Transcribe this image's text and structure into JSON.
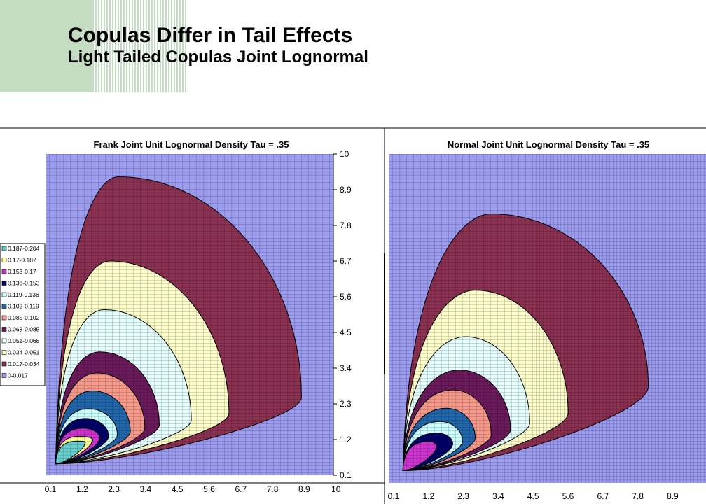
{
  "slide": {
    "title": "Copulas Differ in Tail Effects",
    "subtitle": "Light Tailed Copulas Joint Lognormal"
  },
  "colors": {
    "background_grid": "#9b9bf0",
    "grid_line": "#000000",
    "deco_green": "#c4dcc2"
  },
  "chart_data": [
    {
      "type": "heatmap",
      "subtype": "contour",
      "title": "Frank Joint Unit Lognormal Density Tau = .35",
      "x_ticks": [
        "0.1",
        "1.2",
        "2.3",
        "3.4",
        "4.5",
        "5.6",
        "6.7",
        "7.8",
        "8.9",
        "10"
      ],
      "y_ticks": [
        "10",
        "8.9",
        "7.8",
        "6.7",
        "5.6",
        "4.5",
        "3.4",
        "2.3",
        "1.2",
        "0.1"
      ],
      "xlim": [
        0.1,
        10
      ],
      "ylim": [
        0.1,
        10
      ],
      "mode": [
        1.15,
        1.1
      ],
      "grid": true,
      "legend_position": "left",
      "legend": [
        {
          "label": "0.187-0.204",
          "color": "#66cccc"
        },
        {
          "label": "0.17-0.187",
          "color": "#ffff99"
        },
        {
          "label": "0.153-0.17",
          "color": "#cc33cc"
        },
        {
          "label": "0.136-0.153",
          "color": "#000066"
        },
        {
          "label": "0.119-0.136",
          "color": "#ccffff"
        },
        {
          "label": "0.102-0.119",
          "color": "#2266aa"
        },
        {
          "label": "0.085-0.102",
          "color": "#f59a8a"
        },
        {
          "label": "0.068-0.085",
          "color": "#6a1a5a"
        },
        {
          "label": "0.051-0.068",
          "color": "#e6ffff"
        },
        {
          "label": "0.034-0.051",
          "color": "#ffffcc"
        },
        {
          "label": "0.017-0.034",
          "color": "#8a3050"
        },
        {
          "label": "0-0.017",
          "color": "#9b9bf0"
        }
      ],
      "contours": [
        {
          "level": "0.017-0.034",
          "color": "#8a3050",
          "peak": [
            2.6,
            9.3
          ],
          "right": [
            8.9,
            2.5
          ]
        },
        {
          "level": "0.034-0.051",
          "color": "#ffffcc",
          "peak": [
            2.3,
            6.7
          ],
          "right": [
            6.4,
            2.0
          ]
        },
        {
          "level": "0.051-0.068",
          "color": "#e6ffff",
          "peak": [
            2.1,
            5.2
          ],
          "right": [
            5.1,
            1.8
          ]
        },
        {
          "level": "0.068-0.085",
          "color": "#6a1a5a",
          "peak": [
            1.95,
            3.9
          ],
          "right": [
            4.0,
            1.65
          ]
        },
        {
          "level": "0.085-0.102",
          "color": "#f59a8a",
          "peak": [
            1.85,
            3.25
          ],
          "right": [
            3.5,
            1.55
          ]
        },
        {
          "level": "0.102-0.119",
          "color": "#2266aa",
          "peak": [
            1.7,
            2.7
          ],
          "right": [
            3.0,
            1.45
          ]
        },
        {
          "level": "0.119-0.136",
          "color": "#ccffff",
          "peak": [
            1.55,
            2.15
          ],
          "right": [
            2.55,
            1.35
          ]
        },
        {
          "level": "0.136-0.153",
          "color": "#000066",
          "peak": [
            1.45,
            1.85
          ],
          "right": [
            2.25,
            1.3
          ]
        },
        {
          "level": "0.153-0.17",
          "color": "#cc33cc",
          "peak": [
            1.35,
            1.55
          ],
          "right": [
            1.95,
            1.25
          ]
        },
        {
          "level": "0.17-0.187",
          "color": "#ffff99",
          "peak": [
            1.25,
            1.3
          ],
          "right": [
            1.7,
            1.2
          ]
        },
        {
          "level": "0.187-0.204",
          "color": "#66cccc",
          "peak": [
            1.2,
            1.15
          ],
          "right": [
            1.45,
            1.12
          ]
        }
      ]
    },
    {
      "type": "heatmap",
      "subtype": "contour",
      "title": "Normal Joint Unit Lognormal Density Tau = .35",
      "x_ticks": [
        "0.1",
        "1.2",
        "2.3",
        "3.4",
        "4.5",
        "5.6",
        "6.7",
        "7.8",
        "8.9"
      ],
      "xlim": [
        0.1,
        10
      ],
      "ylim": [
        0.1,
        10
      ],
      "mode": [
        1.2,
        1.1
      ],
      "grid": true,
      "contours": [
        {
          "level": "0.017-0.034",
          "color": "#8a3050",
          "peak": [
            3.3,
            8.2
          ],
          "right": [
            8.2,
            3.0
          ]
        },
        {
          "level": "0.034-0.051",
          "color": "#ffffcc",
          "peak": [
            2.8,
            5.9
          ],
          "right": [
            5.7,
            2.2
          ]
        },
        {
          "level": "0.051-0.068",
          "color": "#e6ffff",
          "peak": [
            2.5,
            4.5
          ],
          "right": [
            4.5,
            1.9
          ]
        },
        {
          "level": "0.068-0.085",
          "color": "#6a1a5a",
          "peak": [
            2.3,
            3.5
          ],
          "right": [
            3.9,
            1.7
          ]
        },
        {
          "level": "0.085-0.102",
          "color": "#f59a8a",
          "peak": [
            2.1,
            2.9
          ],
          "right": [
            3.3,
            1.55
          ]
        },
        {
          "level": "0.102-0.119",
          "color": "#2266aa",
          "peak": [
            1.9,
            2.35
          ],
          "right": [
            2.8,
            1.45
          ]
        },
        {
          "level": "0.119-0.136",
          "color": "#ccffff",
          "peak": [
            1.7,
            1.95
          ],
          "right": [
            2.4,
            1.35
          ]
        },
        {
          "level": "0.136-0.153",
          "color": "#000066",
          "peak": [
            1.6,
            1.6
          ],
          "right": [
            2.1,
            1.28
          ]
        },
        {
          "level": "0.153-0.17",
          "color": "#cc33cc",
          "peak": [
            1.35,
            1.35
          ],
          "right": [
            1.6,
            1.2
          ]
        }
      ]
    }
  ]
}
